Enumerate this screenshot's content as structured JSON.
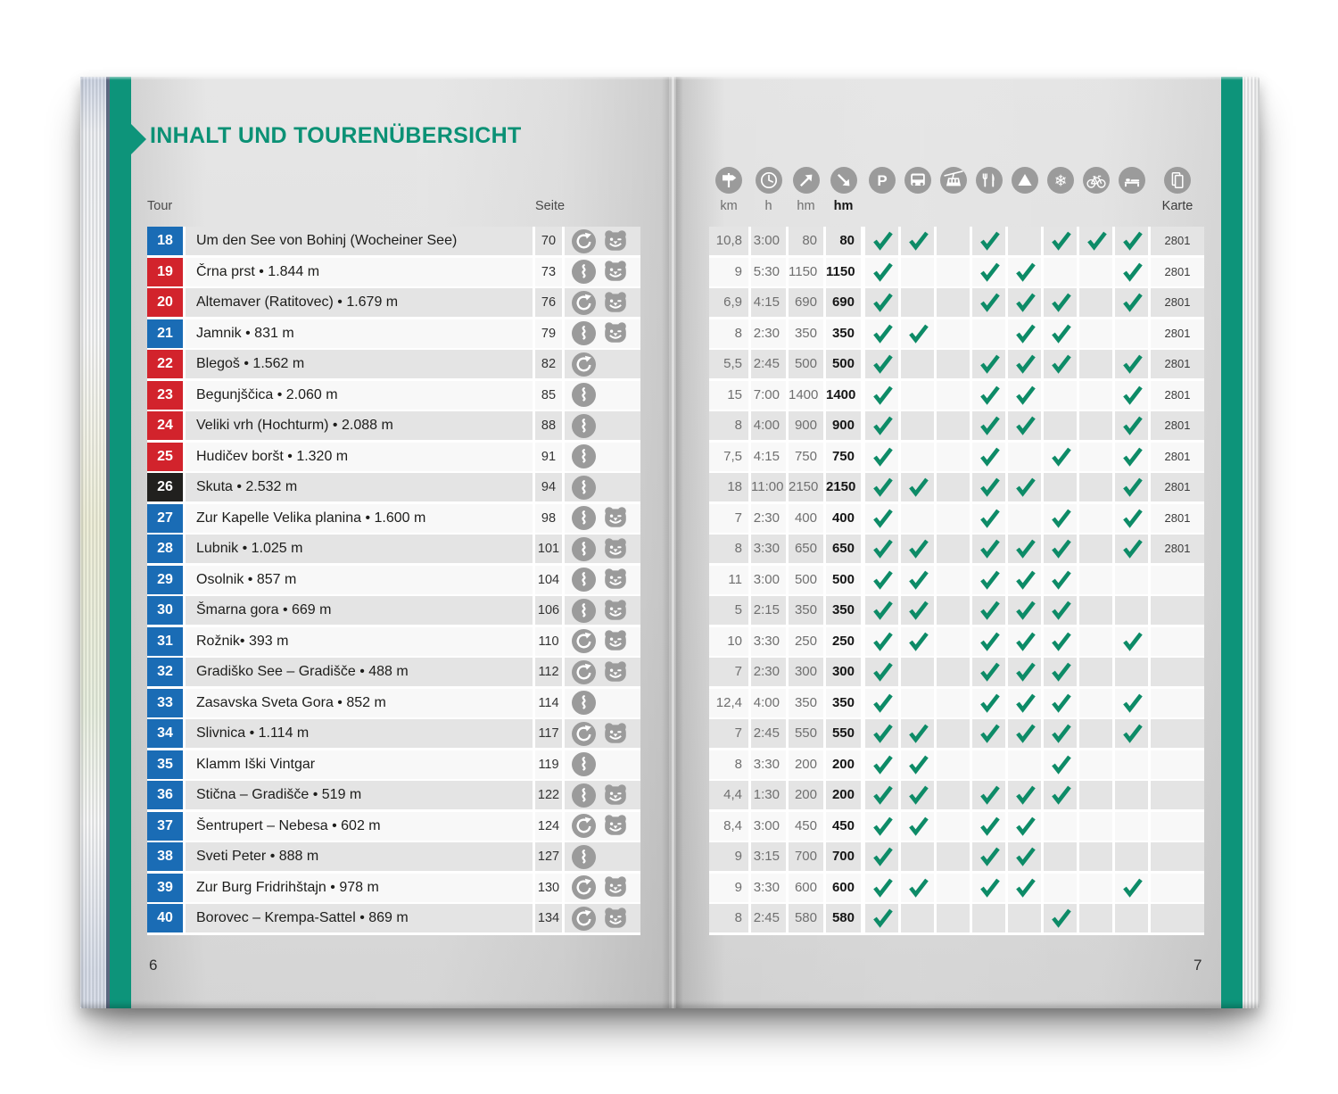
{
  "page": {
    "title": "INHALT UND TOURENÜBERSICHT",
    "left_page_number": "6",
    "right_page_number": "7"
  },
  "table": {
    "tour_label": "Tour",
    "seite_label": "Seite",
    "unit_labels": [
      "km",
      "h",
      "hm",
      "hm"
    ],
    "karte_label": "Karte",
    "stat_icons": [
      "signpost-icon",
      "clock-icon",
      "ascent-icon",
      "descent-icon"
    ],
    "check_icons": [
      "parking-icon",
      "bus-icon",
      "cablecar-icon",
      "restaurant-icon",
      "peak-icon",
      "winter-icon",
      "bike-icon",
      "bed-icon"
    ],
    "map_icon": "karte-icon",
    "route_icon_legend": {
      "loop": "loop-route-icon",
      "line": "line-route-icon",
      "family": "family-bear-icon"
    }
  },
  "colors": {
    "kompass_green": "#0d947a",
    "title_green": "#0b9175",
    "check_green": "#0d8b67",
    "level_blue": "#1a6cb5",
    "level_red": "#d2232c",
    "level_black": "#21201e",
    "icon_gray": "#9b9b9b",
    "stripe_gray": "#e4e4e4",
    "stripe_white": "#f8f8f8"
  },
  "tours": [
    {
      "nr": "18",
      "level": "blue",
      "name": "Um den See von Bohinj (Wocheiner See)",
      "seite": "70",
      "icons": [
        "loop-route-icon",
        "family-bear-icon"
      ],
      "km": "10,8",
      "h": "3:00",
      "up": "80",
      "down": "80",
      "checks": [
        1,
        1,
        0,
        1,
        0,
        1,
        1,
        1
      ],
      "karte": "2801"
    },
    {
      "nr": "19",
      "level": "red",
      "name": "Črna prst • 1.844 m",
      "seite": "73",
      "icons": [
        "line-route-icon",
        "family-bear-icon"
      ],
      "km": "9",
      "h": "5:30",
      "up": "1150",
      "down": "1150",
      "checks": [
        1,
        0,
        0,
        1,
        1,
        0,
        0,
        1
      ],
      "karte": "2801"
    },
    {
      "nr": "20",
      "level": "red",
      "name": "Altemaver (Ratitovec) • 1.679 m",
      "seite": "76",
      "icons": [
        "loop-route-icon",
        "family-bear-icon"
      ],
      "km": "6,9",
      "h": "4:15",
      "up": "690",
      "down": "690",
      "checks": [
        1,
        0,
        0,
        1,
        1,
        1,
        0,
        1
      ],
      "karte": "2801"
    },
    {
      "nr": "21",
      "level": "blue",
      "name": "Jamnik • 831 m",
      "seite": "79",
      "icons": [
        "line-route-icon",
        "family-bear-icon"
      ],
      "km": "8",
      "h": "2:30",
      "up": "350",
      "down": "350",
      "checks": [
        1,
        1,
        0,
        0,
        1,
        1,
        0,
        0
      ],
      "karte": "2801"
    },
    {
      "nr": "22",
      "level": "red",
      "name": "Blegoš • 1.562 m",
      "seite": "82",
      "icons": [
        "loop-route-icon"
      ],
      "km": "5,5",
      "h": "2:45",
      "up": "500",
      "down": "500",
      "checks": [
        1,
        0,
        0,
        1,
        1,
        1,
        0,
        1
      ],
      "karte": "2801"
    },
    {
      "nr": "23",
      "level": "red",
      "name": "Begunjščica • 2.060 m",
      "seite": "85",
      "icons": [
        "line-route-icon"
      ],
      "km": "15",
      "h": "7:00",
      "up": "1400",
      "down": "1400",
      "checks": [
        1,
        0,
        0,
        1,
        1,
        0,
        0,
        1
      ],
      "karte": "2801"
    },
    {
      "nr": "24",
      "level": "red",
      "name": "Veliki vrh (Hochturm) • 2.088 m",
      "seite": "88",
      "icons": [
        "line-route-icon"
      ],
      "km": "8",
      "h": "4:00",
      "up": "900",
      "down": "900",
      "checks": [
        1,
        0,
        0,
        1,
        1,
        0,
        0,
        1
      ],
      "karte": "2801"
    },
    {
      "nr": "25",
      "level": "red",
      "name": "Hudičev boršt • 1.320 m",
      "seite": "91",
      "icons": [
        "line-route-icon"
      ],
      "km": "7,5",
      "h": "4:15",
      "up": "750",
      "down": "750",
      "checks": [
        1,
        0,
        0,
        1,
        0,
        1,
        0,
        1
      ],
      "karte": "2801"
    },
    {
      "nr": "26",
      "level": "black",
      "name": "Skuta • 2.532 m",
      "seite": "94",
      "icons": [
        "line-route-icon"
      ],
      "km": "18",
      "h": "11:00",
      "up": "2150",
      "down": "2150",
      "checks": [
        1,
        1,
        0,
        1,
        1,
        0,
        0,
        1
      ],
      "karte": "2801"
    },
    {
      "nr": "27",
      "level": "blue",
      "name": "Zur Kapelle Velika planina • 1.600 m",
      "seite": "98",
      "icons": [
        "line-route-icon",
        "family-bear-icon"
      ],
      "km": "7",
      "h": "2:30",
      "up": "400",
      "down": "400",
      "checks": [
        1,
        0,
        0,
        1,
        0,
        1,
        0,
        1
      ],
      "karte": "2801"
    },
    {
      "nr": "28",
      "level": "blue",
      "name": "Lubnik • 1.025 m",
      "seite": "101",
      "icons": [
        "line-route-icon",
        "family-bear-icon"
      ],
      "km": "8",
      "h": "3:30",
      "up": "650",
      "down": "650",
      "checks": [
        1,
        1,
        0,
        1,
        1,
        1,
        0,
        1
      ],
      "karte": "2801"
    },
    {
      "nr": "29",
      "level": "blue",
      "name": "Osolnik • 857 m",
      "seite": "104",
      "icons": [
        "line-route-icon",
        "family-bear-icon"
      ],
      "km": "11",
      "h": "3:00",
      "up": "500",
      "down": "500",
      "checks": [
        1,
        1,
        0,
        1,
        1,
        1,
        0,
        0
      ],
      "karte": ""
    },
    {
      "nr": "30",
      "level": "blue",
      "name": "Šmarna gora • 669 m",
      "seite": "106",
      "icons": [
        "line-route-icon",
        "family-bear-icon"
      ],
      "km": "5",
      "h": "2:15",
      "up": "350",
      "down": "350",
      "checks": [
        1,
        1,
        0,
        1,
        1,
        1,
        0,
        0
      ],
      "karte": ""
    },
    {
      "nr": "31",
      "level": "blue",
      "name": "Rožnik• 393 m",
      "seite": "110",
      "icons": [
        "loop-route-icon",
        "family-bear-icon"
      ],
      "km": "10",
      "h": "3:30",
      "up": "250",
      "down": "250",
      "checks": [
        1,
        1,
        0,
        1,
        1,
        1,
        0,
        1
      ],
      "karte": ""
    },
    {
      "nr": "32",
      "level": "blue",
      "name": "Gradiško See – Gradišče • 488 m",
      "seite": "112",
      "icons": [
        "loop-route-icon",
        "family-bear-icon"
      ],
      "km": "7",
      "h": "2:30",
      "up": "300",
      "down": "300",
      "checks": [
        1,
        0,
        0,
        1,
        1,
        1,
        0,
        0
      ],
      "karte": ""
    },
    {
      "nr": "33",
      "level": "blue",
      "name": "Zasavska Sveta Gora • 852 m",
      "seite": "114",
      "icons": [
        "line-route-icon"
      ],
      "km": "12,4",
      "h": "4:00",
      "up": "350",
      "down": "350",
      "checks": [
        1,
        0,
        0,
        1,
        1,
        1,
        0,
        1
      ],
      "karte": ""
    },
    {
      "nr": "34",
      "level": "blue",
      "name": "Slivnica • 1.114 m",
      "seite": "117",
      "icons": [
        "loop-route-icon",
        "family-bear-icon"
      ],
      "km": "7",
      "h": "2:45",
      "up": "550",
      "down": "550",
      "checks": [
        1,
        1,
        0,
        1,
        1,
        1,
        0,
        1
      ],
      "karte": ""
    },
    {
      "nr": "35",
      "level": "blue",
      "name": "Klamm Iški Vintgar",
      "seite": "119",
      "icons": [
        "line-route-icon"
      ],
      "km": "8",
      "h": "3:30",
      "up": "200",
      "down": "200",
      "checks": [
        1,
        1,
        0,
        0,
        0,
        1,
        0,
        0
      ],
      "karte": ""
    },
    {
      "nr": "36",
      "level": "blue",
      "name": "Stična – Gradišče • 519 m",
      "seite": "122",
      "icons": [
        "line-route-icon",
        "family-bear-icon"
      ],
      "km": "4,4",
      "h": "1:30",
      "up": "200",
      "down": "200",
      "checks": [
        1,
        1,
        0,
        1,
        1,
        1,
        0,
        0
      ],
      "karte": ""
    },
    {
      "nr": "37",
      "level": "blue",
      "name": "Šentrupert – Nebesa • 602 m",
      "seite": "124",
      "icons": [
        "loop-route-icon",
        "family-bear-icon"
      ],
      "km": "8,4",
      "h": "3:00",
      "up": "450",
      "down": "450",
      "checks": [
        1,
        1,
        0,
        1,
        1,
        0,
        0,
        0
      ],
      "karte": ""
    },
    {
      "nr": "38",
      "level": "blue",
      "name": "Sveti Peter • 888 m",
      "seite": "127",
      "icons": [
        "line-route-icon"
      ],
      "km": "9",
      "h": "3:15",
      "up": "700",
      "down": "700",
      "checks": [
        1,
        0,
        0,
        1,
        1,
        0,
        0,
        0
      ],
      "karte": ""
    },
    {
      "nr": "39",
      "level": "blue",
      "name": "Zur Burg Fridrihštajn • 978 m",
      "seite": "130",
      "icons": [
        "loop-route-icon",
        "family-bear-icon"
      ],
      "km": "9",
      "h": "3:30",
      "up": "600",
      "down": "600",
      "checks": [
        1,
        1,
        0,
        1,
        1,
        0,
        0,
        1
      ],
      "karte": ""
    },
    {
      "nr": "40",
      "level": "blue",
      "name": "Borovec – Krempa-Sattel • 869 m",
      "seite": "134",
      "icons": [
        "loop-route-icon",
        "family-bear-icon"
      ],
      "km": "8",
      "h": "2:45",
      "up": "580",
      "down": "580",
      "checks": [
        1,
        0,
        0,
        0,
        0,
        1,
        0,
        0
      ],
      "karte": ""
    }
  ]
}
